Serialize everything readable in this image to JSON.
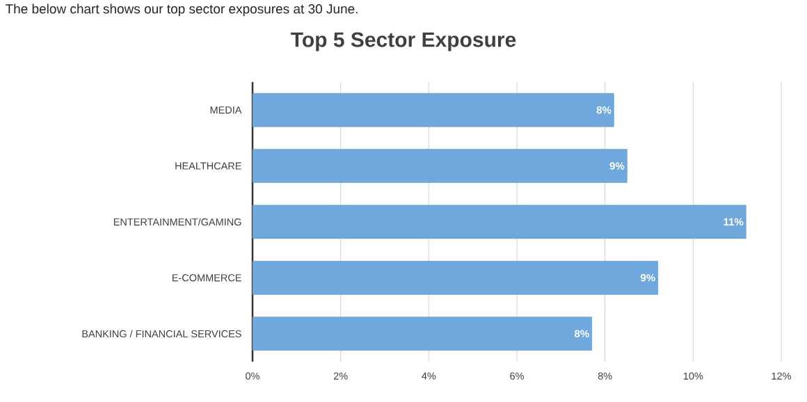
{
  "chart_data": {
    "type": "bar",
    "orientation": "horizontal",
    "title": "Top 5 Sector Exposure",
    "annotations": [
      "The below chart shows our top sector exposures at 30 June."
    ],
    "categories": [
      "MEDIA",
      "HEALTHCARE",
      "ENTERTAINMENT/GAMING",
      "E-COMMERCE",
      "BANKING / FINANCIAL SERVICES"
    ],
    "values": [
      8.2,
      8.5,
      11.2,
      9.2,
      7.7
    ],
    "value_labels": [
      "8%",
      "9%",
      "11%",
      "9%",
      "8%"
    ],
    "color": "#6fa8dc",
    "xlim": [
      0,
      12
    ],
    "xticks": [
      {
        "value": 0,
        "label": "0%"
      },
      {
        "value": 2,
        "label": "2%"
      },
      {
        "value": 4,
        "label": "4%"
      },
      {
        "value": 6,
        "label": "6%"
      },
      {
        "value": 8,
        "label": "8%"
      },
      {
        "value": 10,
        "label": "10%"
      },
      {
        "value": 12,
        "label": "12%"
      }
    ],
    "grid": "x"
  }
}
